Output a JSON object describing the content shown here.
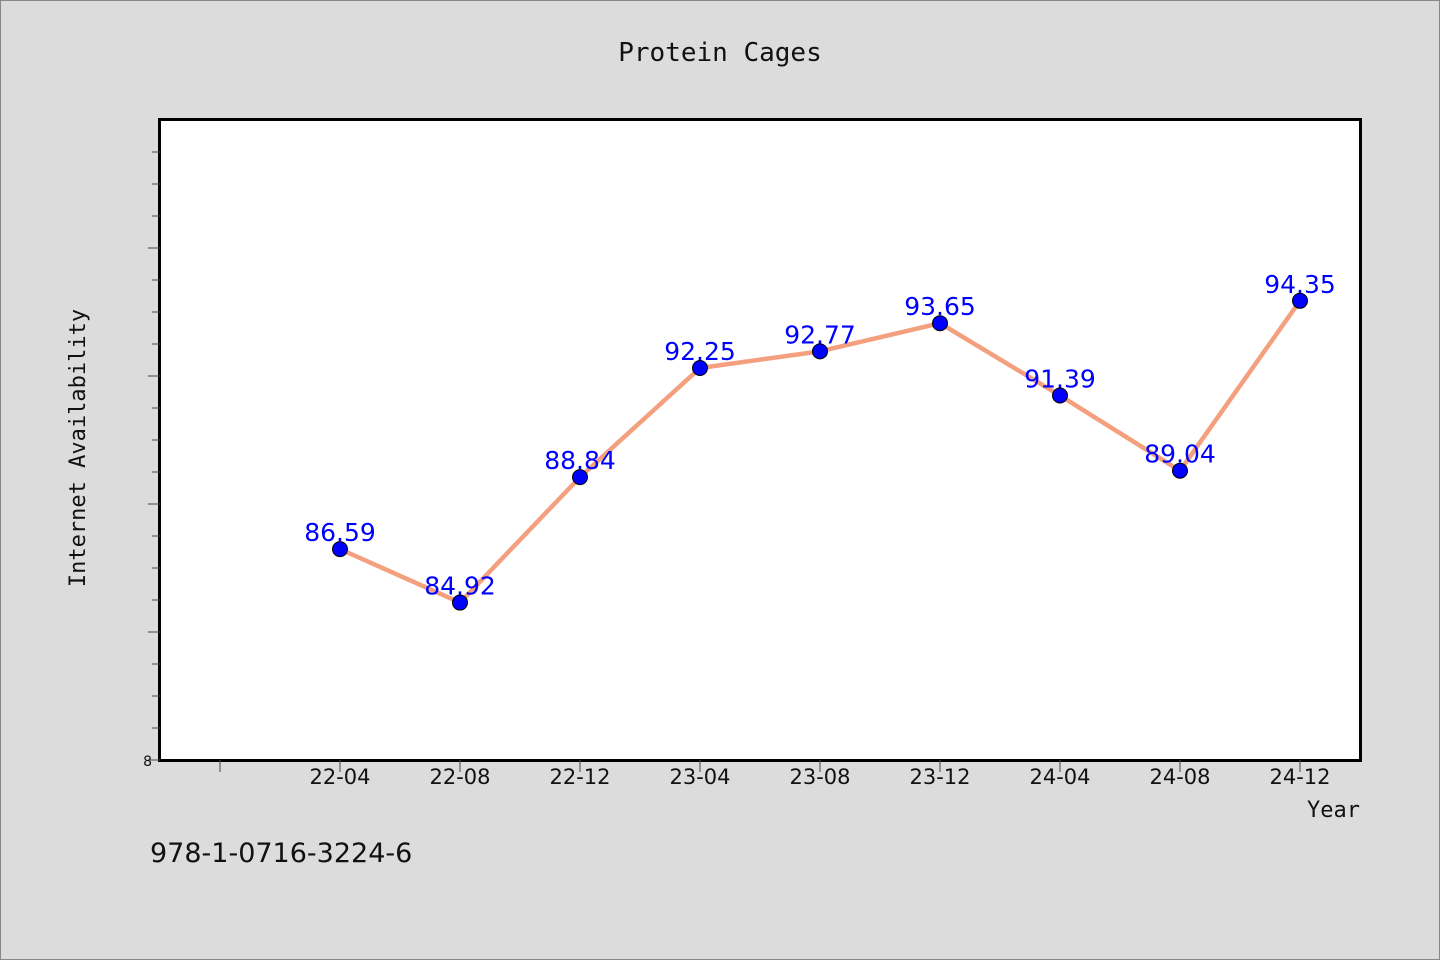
{
  "chart_data": {
    "type": "line",
    "title": "Protein Cages",
    "xlabel": "Year",
    "ylabel": "Internet Availability",
    "categories": [
      "22-04",
      "22-08",
      "22-12",
      "23-04",
      "23-08",
      "23-12",
      "24-04",
      "24-08",
      "24-12"
    ],
    "series": [
      {
        "values": [
          86.59,
          84.92,
          88.84,
          92.25,
          92.77,
          93.65,
          91.39,
          89.04,
          94.35
        ]
      }
    ],
    "data_labels": [
      "86.59",
      "84.92",
      "88.84",
      "92.25",
      "92.77",
      "93.65",
      "91.39",
      "89.04",
      "94.35"
    ],
    "ylim": [
      80,
      100
    ],
    "y_tick_labels": [
      "8"
    ],
    "grid": false,
    "colors": {
      "line": "#f4a07f",
      "marker": "#0000ff",
      "label": "#0000ff"
    }
  },
  "footer": {
    "identifier": "978-1-0716-3224-6"
  }
}
